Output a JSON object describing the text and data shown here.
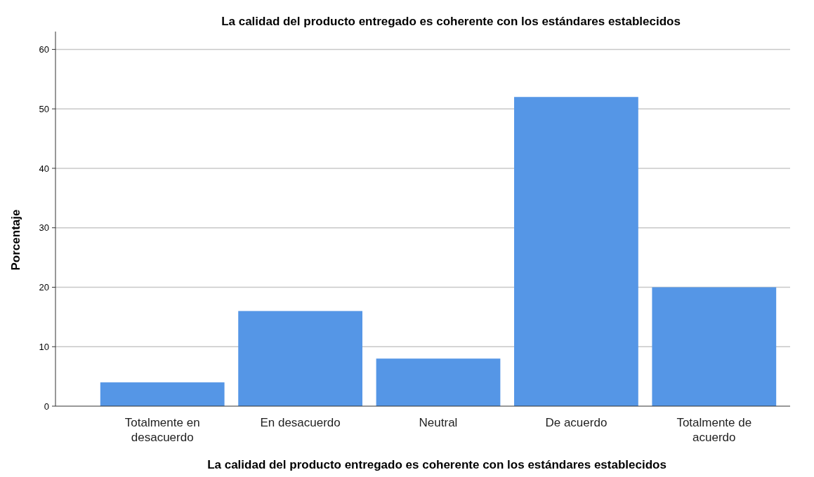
{
  "chart_data": {
    "type": "bar",
    "title": "La calidad del producto entregado es coherente con los estándares establecidos",
    "xlabel": "La calidad del producto entregado es coherente con los estándares establecidos",
    "ylabel": "Porcentaje",
    "categories": [
      "Totalmente en desacuerdo",
      "En desacuerdo",
      "Neutral",
      "De acuerdo",
      "Totalmente de acuerdo"
    ],
    "values": [
      4,
      16,
      8,
      52,
      20
    ],
    "color": "#5596e6",
    "ylim": [
      0,
      63
    ],
    "yticks": [
      0,
      10,
      20,
      30,
      40,
      50,
      60
    ],
    "grid": "y"
  }
}
